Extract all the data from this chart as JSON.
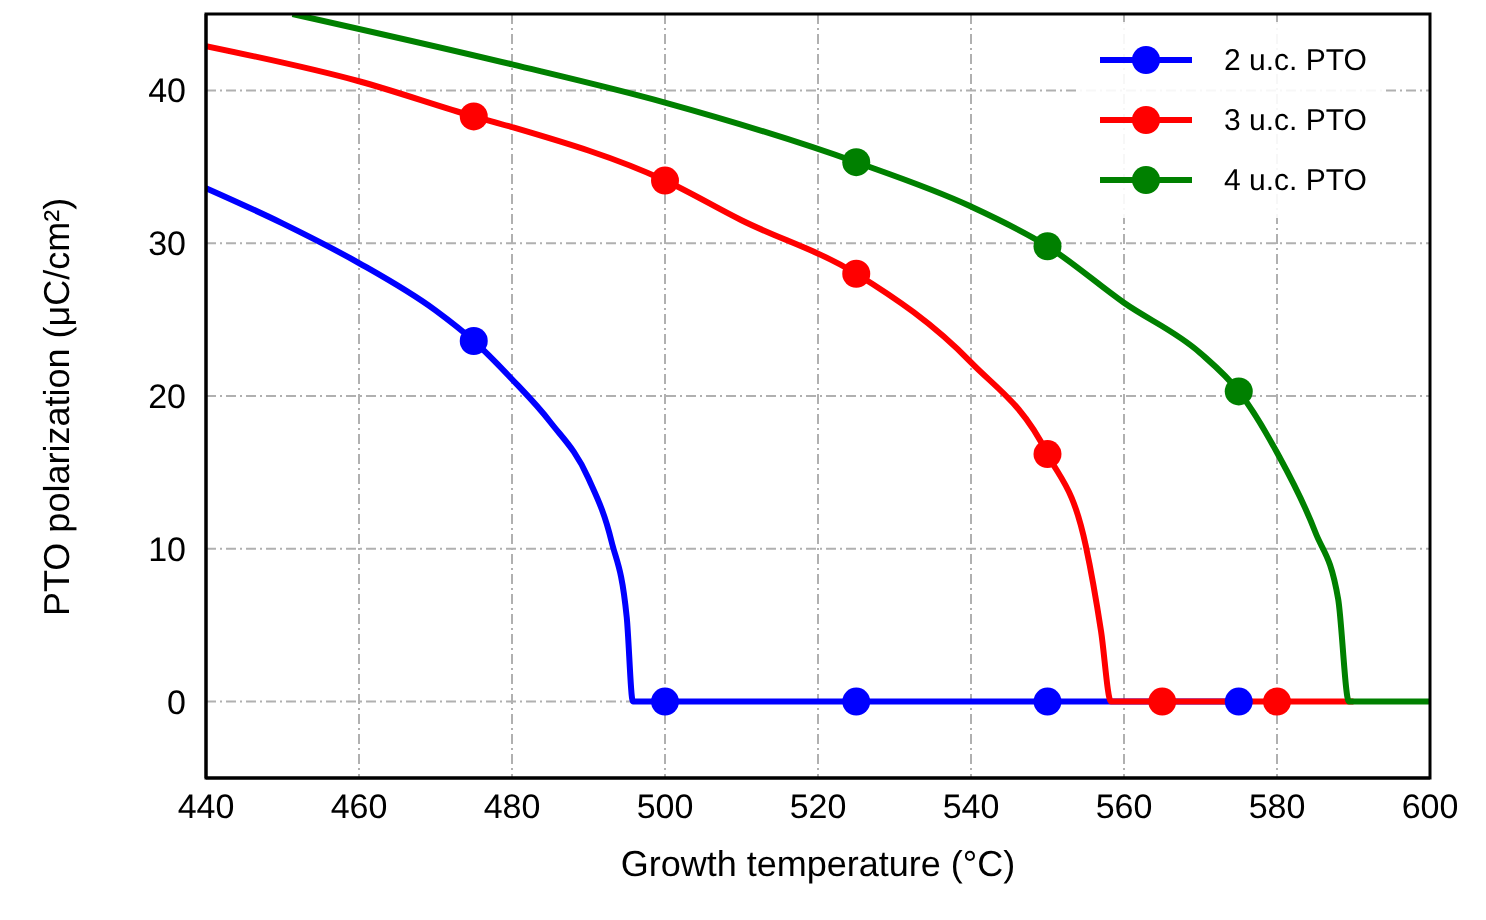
{
  "chart_data": {
    "type": "line",
    "xlabel": "Growth temperature (°C)",
    "ylabel": "PTO polarization (μC/cm²)",
    "xlim": [
      440,
      600
    ],
    "xticks": [
      440,
      460,
      480,
      500,
      520,
      540,
      560,
      580,
      600
    ],
    "ylim": [
      -5,
      45
    ],
    "yticks": [
      0,
      10,
      20,
      30,
      40
    ],
    "grid": true,
    "legend": "top right",
    "series": [
      {
        "name": "2 u.c. PTO",
        "color": "#0000ff",
        "marker": "none",
        "x": [
          440,
          450,
          460,
          470,
          475,
          480,
          485,
          490,
          493,
          495,
          495.8,
          575
        ],
        "values": [
          33.6,
          31.3,
          28.7,
          25.6,
          23.6,
          21.1,
          18.3,
          14.6,
          10.5,
          5.5,
          0,
          0
        ]
      },
      {
        "name": "3 u.c. PTO",
        "color": "#ff0000",
        "marker": "none",
        "x": [
          440,
          460,
          475,
          480,
          500,
          510,
          525,
          540,
          550,
          555,
          557,
          558.3,
          590
        ],
        "values": [
          42.9,
          40.6,
          38.3,
          37.6,
          34.1,
          31.5,
          28.0,
          22.2,
          16.2,
          10.2,
          4.6,
          0,
          0
        ]
      },
      {
        "name": "4 u.c. PTO",
        "color": "#008000",
        "marker": "none",
        "x": [
          451.3,
          480,
          500,
          525,
          540,
          550,
          560,
          570,
          575,
          580,
          585,
          588,
          589.4,
          600
        ],
        "values": [
          45,
          41.7,
          39.2,
          35.3,
          32.4,
          29.8,
          26.1,
          22.8,
          20.3,
          16.3,
          11.1,
          6.7,
          0,
          0
        ]
      },
      {
        "color": "#0000ff",
        "type": "scatter",
        "marker": "circle",
        "x": [
          475,
          500,
          525,
          550,
          575
        ],
        "values": [
          23.6,
          0,
          0,
          0,
          0
        ]
      },
      {
        "color": "#ff0000",
        "type": "scatter",
        "marker": "circle",
        "x": [
          475,
          500,
          525,
          550,
          565,
          580
        ],
        "values": [
          38.3,
          34.1,
          28.0,
          16.2,
          0,
          0
        ]
      },
      {
        "color": "#008000",
        "type": "scatter",
        "marker": "circle",
        "x": [
          525,
          550,
          575
        ],
        "values": [
          35.3,
          29.8,
          20.3
        ]
      }
    ]
  }
}
